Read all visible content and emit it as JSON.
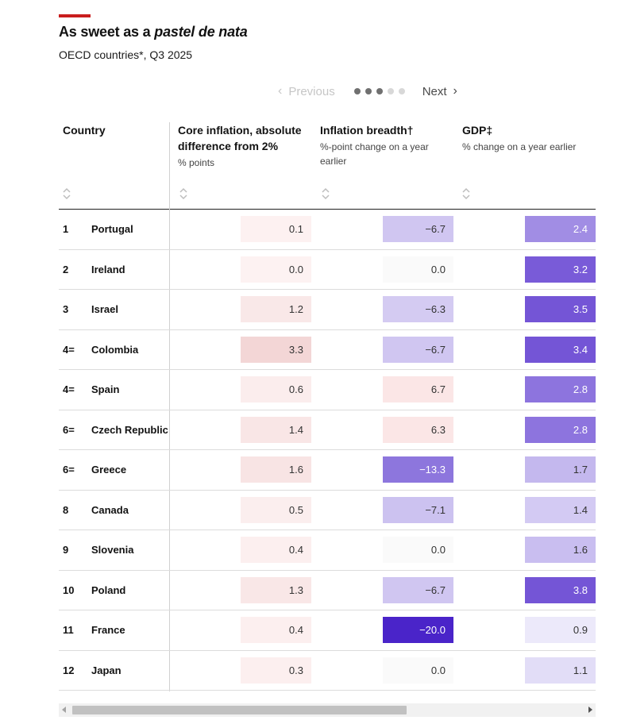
{
  "header": {
    "title_prefix": "As sweet as a ",
    "title_italic": "pastel de nata",
    "subtitle": "OECD countries*, Q3 2025"
  },
  "pager": {
    "previous_label": "Previous",
    "next_label": "Next",
    "page_count": 5,
    "current_page": 3
  },
  "columns": [
    {
      "title": "Country",
      "subtitle": ""
    },
    {
      "title": "Core inflation, absolute difference from 2%",
      "subtitle": "% points"
    },
    {
      "title": "Inflation breadth†",
      "subtitle": "%-point change on a year earlier"
    },
    {
      "title": "GDP‡",
      "subtitle": "% change on a year earlier"
    }
  ],
  "rows": [
    {
      "rank": "1",
      "country": "Portugal",
      "core": "0.1",
      "breadth": "−6.7",
      "gdp": "2.4"
    },
    {
      "rank": "2",
      "country": "Ireland",
      "core": "0.0",
      "breadth": "0.0",
      "gdp": "3.2"
    },
    {
      "rank": "3",
      "country": "Israel",
      "core": "1.2",
      "breadth": "−6.3",
      "gdp": "3.5"
    },
    {
      "rank": "4=",
      "country": "Colombia",
      "core": "3.3",
      "breadth": "−6.7",
      "gdp": "3.4"
    },
    {
      "rank": "4=",
      "country": "Spain",
      "core": "0.6",
      "breadth": "6.7",
      "gdp": "2.8"
    },
    {
      "rank": "6=",
      "country": "Czech Republic",
      "core": "1.4",
      "breadth": "6.3",
      "gdp": "2.8"
    },
    {
      "rank": "6=",
      "country": "Greece",
      "core": "1.6",
      "breadth": "−13.3",
      "gdp": "1.7"
    },
    {
      "rank": "8",
      "country": "Canada",
      "core": "0.5",
      "breadth": "−7.1",
      "gdp": "1.4"
    },
    {
      "rank": "9",
      "country": "Slovenia",
      "core": "0.4",
      "breadth": "0.0",
      "gdp": "1.6"
    },
    {
      "rank": "10",
      "country": "Poland",
      "core": "1.3",
      "breadth": "−6.7",
      "gdp": "3.8"
    },
    {
      "rank": "11",
      "country": "France",
      "core": "0.4",
      "breadth": "−20.0",
      "gdp": "0.9"
    },
    {
      "rank": "12",
      "country": "Japan",
      "core": "0.3",
      "breadth": "0.0",
      "gdp": "1.1"
    }
  ],
  "colors": {
    "accent": "#c91d1d",
    "core_scale": [
      "#fdf2f2",
      "#f3d6d6"
    ],
    "breadth_positive": "#fbe6e6",
    "breadth_zero": "#fafafa",
    "breadth_negative": [
      "#d7cff3",
      "#4a24c9"
    ],
    "gdp_scale": [
      "#ece9fa",
      "#7455d6"
    ]
  },
  "icons": {
    "sort": "sort-up-down-icon",
    "prev": "chevron-left-icon",
    "next": "chevron-right-icon"
  }
}
